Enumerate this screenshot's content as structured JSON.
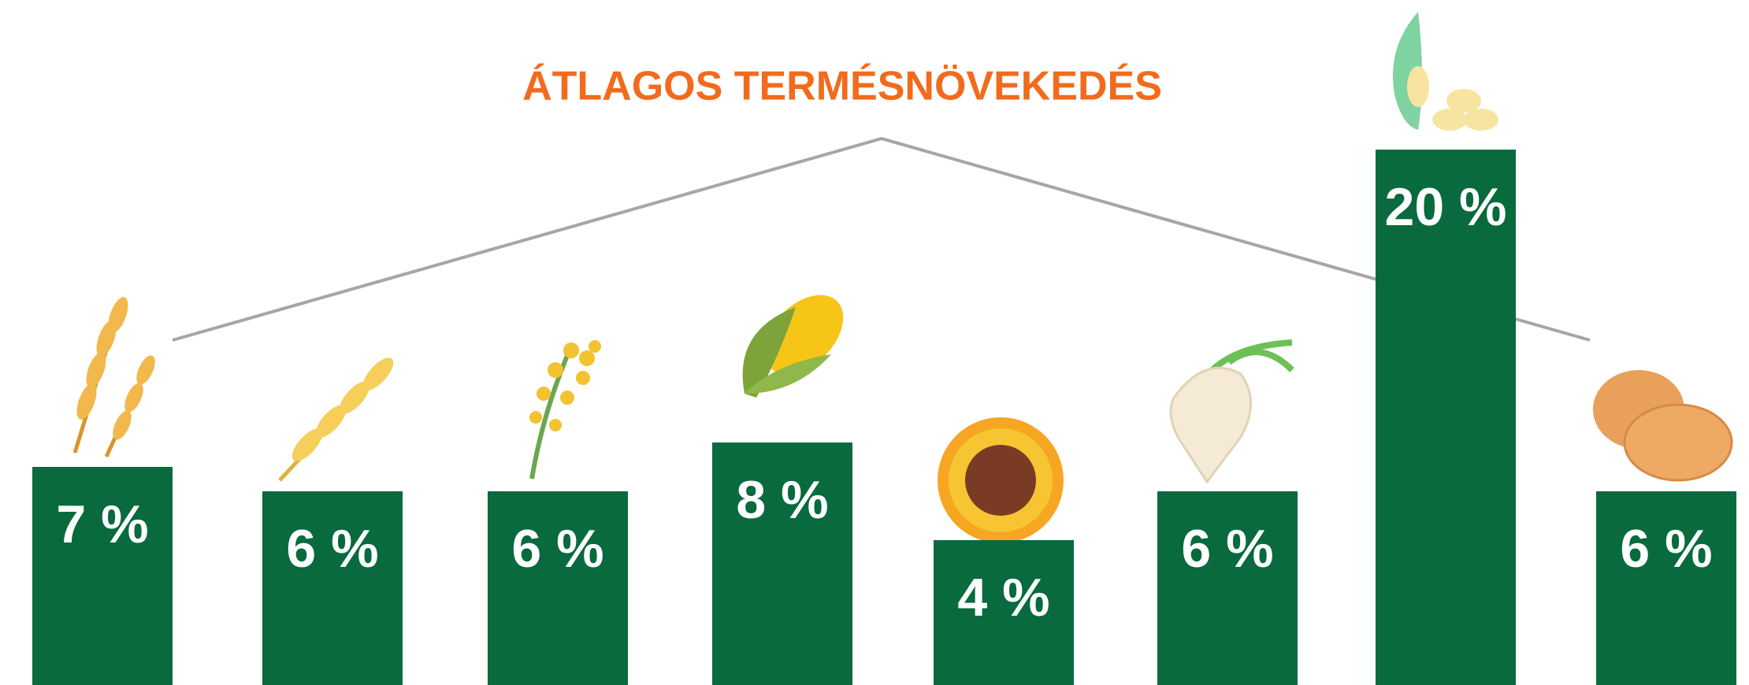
{
  "chart_data": {
    "type": "bar",
    "title": "ÁTLAGOS TERMÉSNÖVEKEDÉS",
    "values": [
      7,
      6,
      6,
      8,
      4,
      6,
      20,
      6
    ],
    "value_labels": [
      "7 %",
      "6 %",
      "6 %",
      "8 %",
      "4 %",
      "6 %",
      "20 %",
      "6 %"
    ],
    "color": "#086a3d"
  }
}
